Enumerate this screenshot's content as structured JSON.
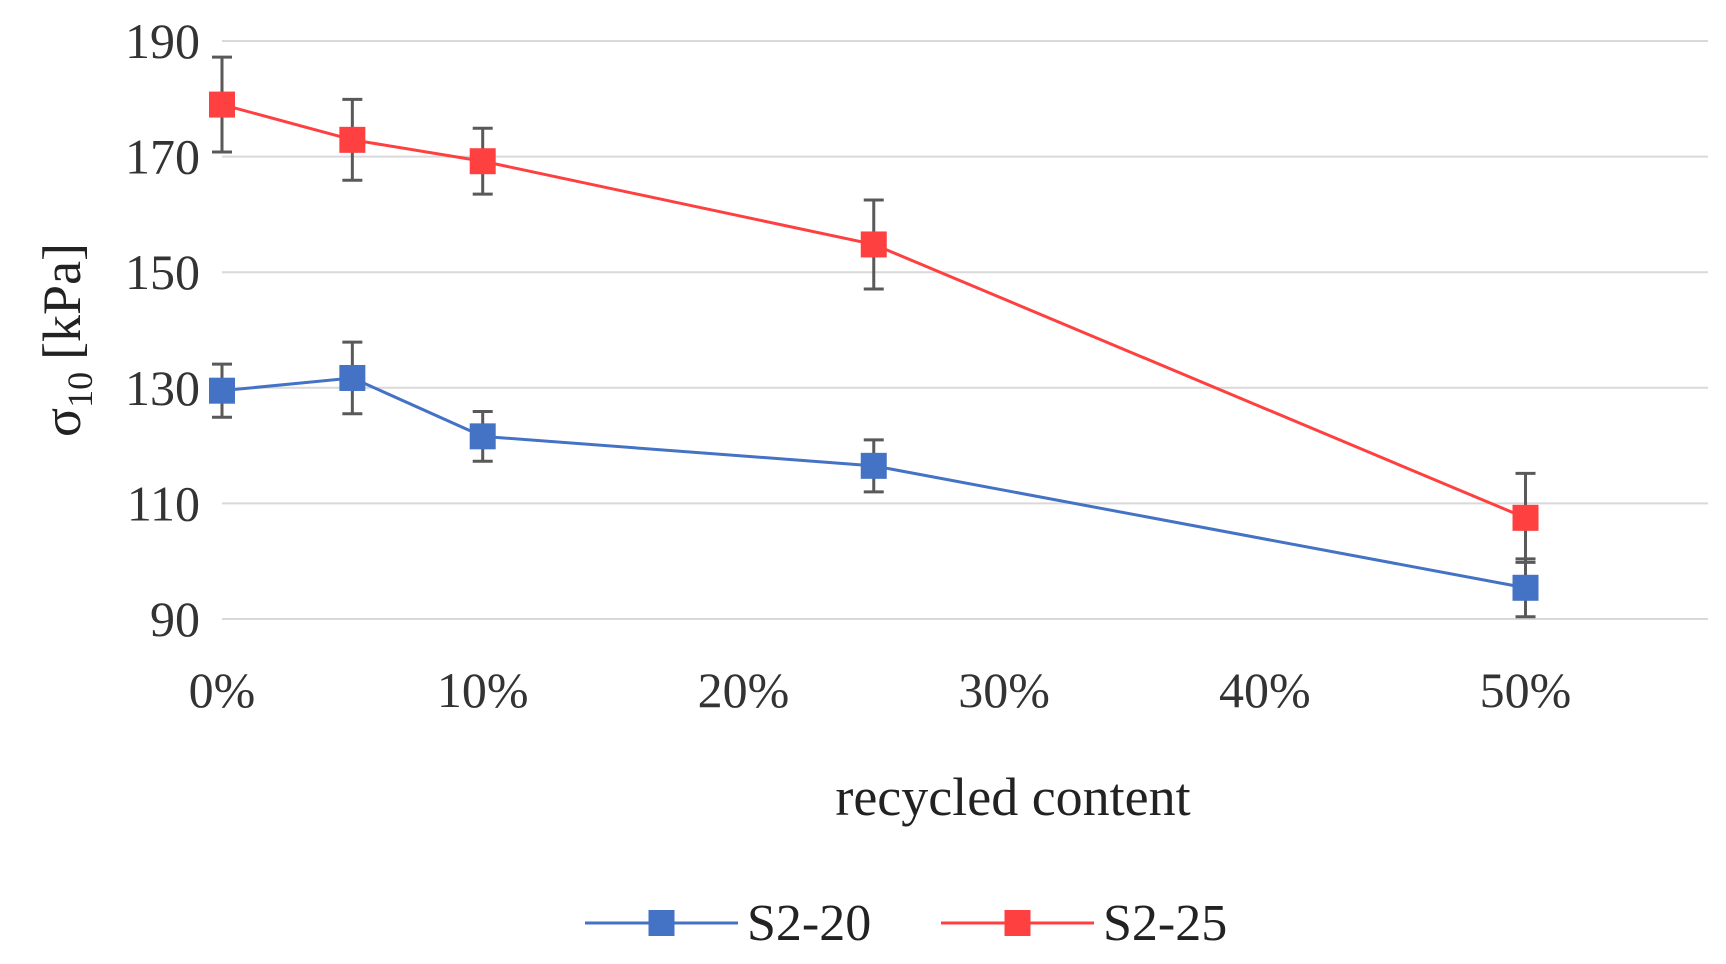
{
  "chart_data": {
    "type": "line",
    "xlabel": "recycled content",
    "ylabel_main": "σ",
    "ylabel_sub": "10",
    "ylabel_unit": "[kPa]",
    "x_ticks": [
      0,
      10,
      20,
      30,
      40,
      50
    ],
    "x_tick_labels": [
      "0%",
      "10%",
      "20%",
      "30%",
      "40%",
      "50%"
    ],
    "xlim": [
      0,
      57
    ],
    "y_ticks": [
      90,
      110,
      130,
      150,
      170,
      190
    ],
    "y_tick_labels": [
      "90",
      "110",
      "130",
      "150",
      "170",
      "190"
    ],
    "ylim": [
      90,
      190
    ],
    "grid": true,
    "legend_position": "bottom",
    "series": [
      {
        "name": "S2-20",
        "color": "#4472C4",
        "x": [
          0,
          5,
          10,
          25,
          50
        ],
        "values": [
          129.5,
          131.7,
          121.6,
          116.5,
          95.4
        ],
        "err_low": [
          4.6,
          6.2,
          4.3,
          4.5,
          5.0
        ],
        "err_high": [
          4.6,
          6.2,
          4.3,
          4.5,
          5.0
        ]
      },
      {
        "name": "S2-25",
        "color": "#FF4040",
        "x": [
          0,
          5,
          10,
          25,
          50
        ],
        "values": [
          179,
          172.9,
          169.2,
          154.8,
          107.5
        ],
        "err_low": [
          8.2,
          7.0,
          5.7,
          7.7,
          7.7
        ],
        "err_high": [
          8.2,
          7.0,
          5.7,
          7.7,
          7.7
        ]
      }
    ]
  }
}
